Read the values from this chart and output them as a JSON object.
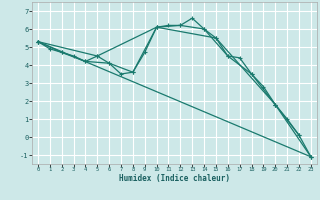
{
  "xlabel": "Humidex (Indice chaleur)",
  "ylabel": "",
  "bg_color": "#cde8e8",
  "grid_color": "#ffffff",
  "line_color": "#1a7a6e",
  "xlim": [
    -0.5,
    23.5
  ],
  "ylim": [
    -1.5,
    7.5
  ],
  "xticks": [
    0,
    1,
    2,
    3,
    4,
    5,
    6,
    7,
    8,
    9,
    10,
    11,
    12,
    13,
    14,
    15,
    16,
    17,
    18,
    19,
    20,
    21,
    22,
    23
  ],
  "yticks": [
    -1,
    0,
    1,
    2,
    3,
    4,
    5,
    6,
    7
  ],
  "lines": [
    {
      "x": [
        0,
        1,
        2,
        3,
        4,
        5,
        6,
        7,
        8,
        9,
        10,
        11,
        12,
        13,
        14,
        15,
        16,
        17,
        18,
        19,
        20,
        21,
        22,
        23
      ],
      "y": [
        5.3,
        4.9,
        4.7,
        4.5,
        4.2,
        4.5,
        4.1,
        3.5,
        3.6,
        4.7,
        6.1,
        6.2,
        6.2,
        6.6,
        6.0,
        5.5,
        4.5,
        4.4,
        3.5,
        2.8,
        1.8,
        1.0,
        0.1,
        -1.1
      ]
    },
    {
      "x": [
        0,
        2,
        4,
        6,
        8,
        10,
        12,
        14,
        16,
        18,
        20,
        22
      ],
      "y": [
        5.3,
        4.7,
        4.2,
        4.1,
        3.6,
        6.1,
        6.2,
        6.0,
        4.5,
        3.5,
        1.8,
        0.1
      ]
    },
    {
      "x": [
        0,
        5,
        10,
        15,
        20,
        23
      ],
      "y": [
        5.3,
        4.5,
        6.1,
        5.5,
        1.8,
        -1.1
      ]
    },
    {
      "x": [
        0,
        23
      ],
      "y": [
        5.3,
        -1.1
      ]
    }
  ]
}
